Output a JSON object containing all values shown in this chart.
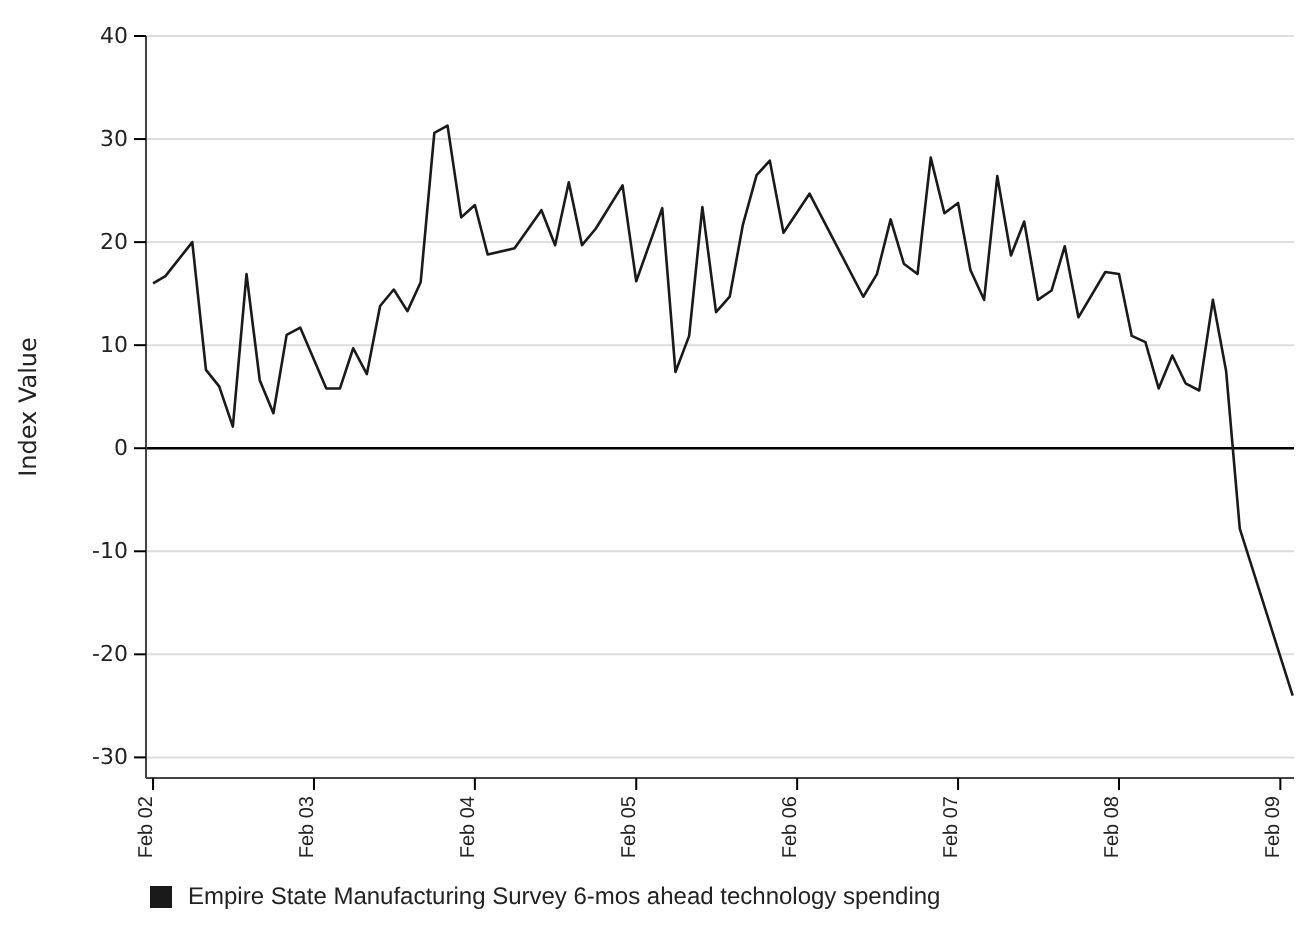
{
  "chart_data": {
    "type": "line",
    "ylabel": "Index Value",
    "legend": "bottom",
    "grid": "y",
    "marker": "none",
    "line_style": "solid",
    "x": [
      "2002-02",
      "2002-03",
      "2002-05",
      "2002-06",
      "2002-07",
      "2002-08",
      "2002-09",
      "2002-10",
      "2002-11",
      "2002-12",
      "2003-01",
      "2003-03",
      "2003-04",
      "2003-05",
      "2003-06",
      "2003-07",
      "2003-08",
      "2003-09",
      "2003-10",
      "2003-11",
      "2003-12",
      "2004-01",
      "2004-02",
      "2004-03",
      "2004-05",
      "2004-07",
      "2004-08",
      "2004-09",
      "2004-10",
      "2004-11",
      "2005-01",
      "2005-02",
      "2005-04",
      "2005-05",
      "2005-06",
      "2005-07",
      "2005-08",
      "2005-09",
      "2005-10",
      "2005-11",
      "2005-12",
      "2006-01",
      "2006-03",
      "2006-07",
      "2006-08",
      "2006-09",
      "2006-10",
      "2006-11",
      "2006-12",
      "2007-01",
      "2007-02",
      "2007-03",
      "2007-04",
      "2007-05",
      "2007-06",
      "2007-07",
      "2007-08",
      "2007-09",
      "2007-10",
      "2007-11",
      "2008-01",
      "2008-02",
      "2008-03",
      "2008-04",
      "2008-05",
      "2008-06",
      "2008-07",
      "2008-08",
      "2008-09",
      "2008-10",
      "2008-11",
      "2009-03"
    ],
    "series": [
      {
        "name": "Empire State Manufacturing Survey 6-mos ahead technology spending",
        "color": "#1a1a1a",
        "values": [
          16.0,
          16.7,
          20.0,
          7.6,
          6.0,
          2.1,
          16.9,
          6.6,
          3.4,
          11.0,
          11.7,
          5.8,
          5.8,
          9.7,
          7.2,
          13.8,
          15.4,
          13.3,
          16.1,
          30.6,
          31.3,
          22.4,
          23.6,
          18.8,
          19.4,
          23.1,
          19.7,
          25.8,
          19.7,
          21.3,
          25.5,
          16.2,
          23.3,
          7.4,
          10.9,
          23.4,
          13.2,
          14.7,
          21.7,
          26.5,
          27.9,
          20.9,
          24.7,
          14.7,
          16.9,
          22.2,
          17.9,
          16.9,
          28.2,
          22.8,
          23.8,
          17.3,
          14.4,
          26.4,
          18.7,
          22.0,
          14.4,
          15.3,
          19.6,
          12.7,
          17.1,
          16.9,
          10.9,
          10.3,
          5.8,
          9.0,
          6.3,
          5.6,
          14.4,
          7.5,
          -7.8,
          -24.0
        ]
      }
    ],
    "xlim": [
      "2002-01-16",
      "2009-03-04"
    ],
    "xticks": [
      {
        "value": "2002-02",
        "label": "Feb 02"
      },
      {
        "value": "2003-02",
        "label": "Feb 03"
      },
      {
        "value": "2004-02",
        "label": "Feb 04"
      },
      {
        "value": "2005-02",
        "label": "Feb 05"
      },
      {
        "value": "2006-02",
        "label": "Feb 06"
      },
      {
        "value": "2007-02",
        "label": "Feb 07"
      },
      {
        "value": "2008-02",
        "label": "Feb 08"
      },
      {
        "value": "2009-02",
        "label": "Feb 09"
      }
    ],
    "ylim": [
      -32,
      40
    ],
    "yticks": [
      -30,
      -20,
      -10,
      0,
      10,
      20,
      30,
      40
    ],
    "ref_lines": [
      {
        "axis": "y",
        "value": 0,
        "color": "#000000"
      }
    ]
  }
}
